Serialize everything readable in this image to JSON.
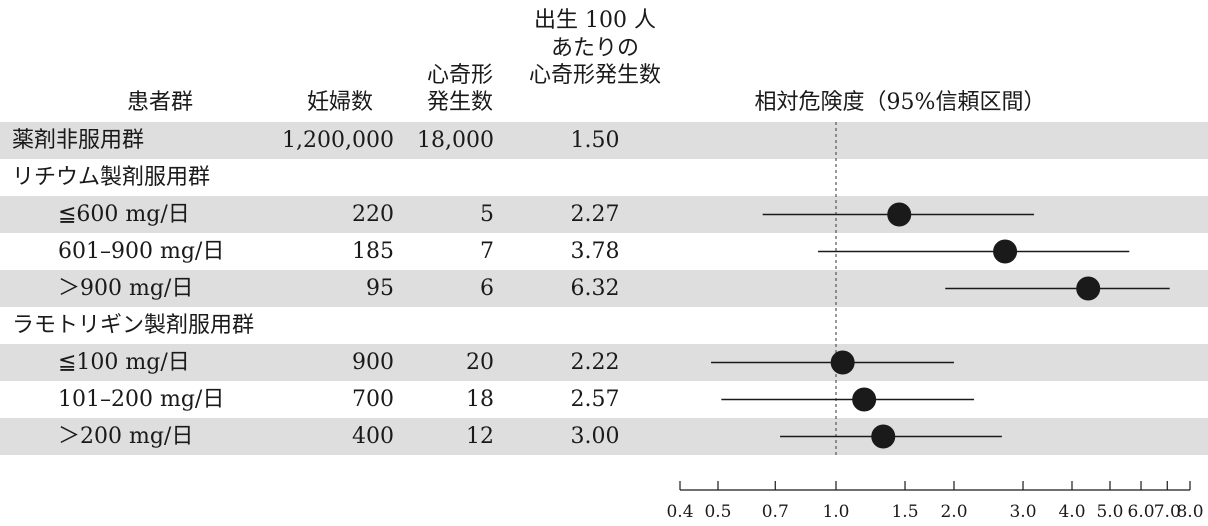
{
  "headers": {
    "group": "患者群",
    "pregnancies": "妊婦数",
    "malformations_line1": "心奇形",
    "malformations_line2": "発生数",
    "rate_line1": "出生 100 人",
    "rate_line2": "あたりの",
    "rate_line3": "心奇形発生数",
    "rr": "相対危険度（95%信頼区間）"
  },
  "rows": [
    {
      "label": "薬剤非服用群",
      "pregnancies": "1,200,000",
      "malformations": "18,000",
      "rate": "1.50",
      "shaded": true,
      "indent": false
    },
    {
      "label": "リチウム製剤服用群",
      "pregnancies": "",
      "malformations": "",
      "rate": "",
      "shaded": false,
      "indent": false
    },
    {
      "label": "≦600 mg/日",
      "pregnancies": "220",
      "malformations": "5",
      "rate": "2.27",
      "shaded": true,
      "indent": true
    },
    {
      "label": "601–900 mg/日",
      "pregnancies": "185",
      "malformations": "7",
      "rate": "3.78",
      "shaded": false,
      "indent": true
    },
    {
      "label": "＞900 mg/日",
      "pregnancies": "95",
      "malformations": "6",
      "rate": "6.32",
      "shaded": true,
      "indent": true
    },
    {
      "label": "ラモトリギン製剤服用群",
      "pregnancies": "",
      "malformations": "",
      "rate": "",
      "shaded": false,
      "indent": false
    },
    {
      "label": "≦100 mg/日",
      "pregnancies": "900",
      "malformations": "20",
      "rate": "2.22",
      "shaded": true,
      "indent": true
    },
    {
      "label": "101–200 mg/日",
      "pregnancies": "700",
      "malformations": "18",
      "rate": "2.57",
      "shaded": false,
      "indent": true
    },
    {
      "label": "＞200 mg/日",
      "pregnancies": "400",
      "malformations": "12",
      "rate": "3.00",
      "shaded": true,
      "indent": true
    }
  ],
  "chart_data": {
    "type": "scatter",
    "subtype": "forest-plot",
    "title": "",
    "xlabel": "",
    "ylabel": "",
    "x_scale": "log",
    "xlim": [
      0.4,
      8.0
    ],
    "reference_line": 1.0,
    "tick_values": [
      0.4,
      0.5,
      0.7,
      1.0,
      1.5,
      2.0,
      3.0,
      4.0,
      5.0,
      6.0,
      7.0,
      8.0
    ],
    "tick_labels": [
      "0.4",
      "0.5",
      "0.7",
      "1.0",
      "1.5",
      "2.0",
      "3.0",
      "4.0",
      "5.0",
      "6.0",
      "7.0",
      "8.0"
    ],
    "points": [
      {
        "row": 2,
        "estimate": 1.45,
        "ci_low": 0.65,
        "ci_high": 3.2
      },
      {
        "row": 3,
        "estimate": 2.7,
        "ci_low": 0.9,
        "ci_high": 5.6
      },
      {
        "row": 4,
        "estimate": 4.4,
        "ci_low": 1.9,
        "ci_high": 7.1
      },
      {
        "row": 6,
        "estimate": 1.04,
        "ci_low": 0.48,
        "ci_high": 2.0
      },
      {
        "row": 7,
        "estimate": 1.18,
        "ci_low": 0.51,
        "ci_high": 2.25
      },
      {
        "row": 8,
        "estimate": 1.32,
        "ci_low": 0.72,
        "ci_high": 2.65
      }
    ],
    "colors": {
      "marker": "#1a1a1a",
      "line": "#1a1a1a",
      "shade": "#dedede"
    }
  }
}
